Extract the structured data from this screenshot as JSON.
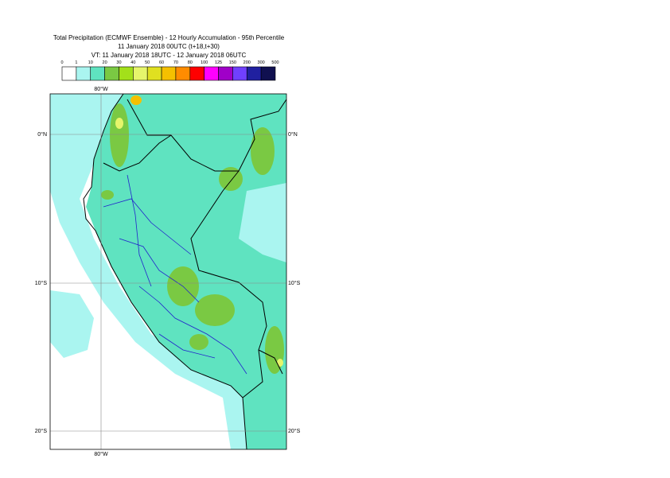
{
  "title": [
    "Total Precipitation (ECMWF Ensemble) - 12 Hourly Accumulation - 95th Percentile",
    "11 January 2018 00UTC (t+18,t+30)",
    "VT: 11 January 2018 18UTC - 12 January 2018 06UTC"
  ],
  "legend": {
    "labels": [
      0,
      1,
      10,
      20,
      30,
      40,
      50,
      60,
      70,
      80,
      100,
      125,
      150,
      200,
      300,
      500
    ],
    "colors": [
      "#ffffff",
      "#aaf5f0",
      "#5fe3c0",
      "#7ac943",
      "#a3e01a",
      "#e6f56b",
      "#e0e020",
      "#f5c000",
      "#ff8c00",
      "#ff0000",
      "#ff00ff",
      "#a000c8",
      "#7040ff",
      "#2020a0",
      "#101050"
    ]
  },
  "map": {
    "lon_labels": [
      "80°W"
    ],
    "lat_labels": [
      "0°N",
      "10°S",
      "20°S"
    ]
  }
}
